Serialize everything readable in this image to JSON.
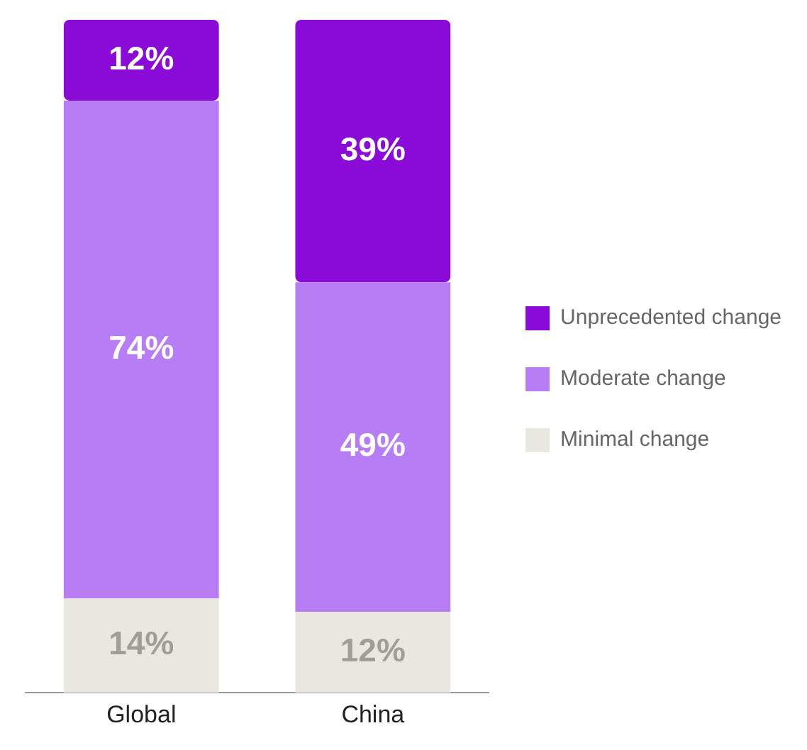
{
  "chart_data": {
    "type": "bar",
    "stacked": true,
    "categories": [
      "Global",
      "China"
    ],
    "series": [
      {
        "name": "Minimal change",
        "color": "#e9e8e0",
        "values": [
          14,
          12
        ],
        "value_labels": [
          "14%",
          "12%"
        ]
      },
      {
        "name": "Moderate change",
        "color": "#b77df5",
        "values": [
          74,
          49
        ],
        "value_labels": [
          "74%",
          "49%"
        ]
      },
      {
        "name": "Unprecedented change",
        "color": "#8a0bd8",
        "values": [
          12,
          39
        ],
        "value_labels": [
          "12%",
          "39%"
        ]
      }
    ],
    "legend": "right",
    "grid": false
  }
}
